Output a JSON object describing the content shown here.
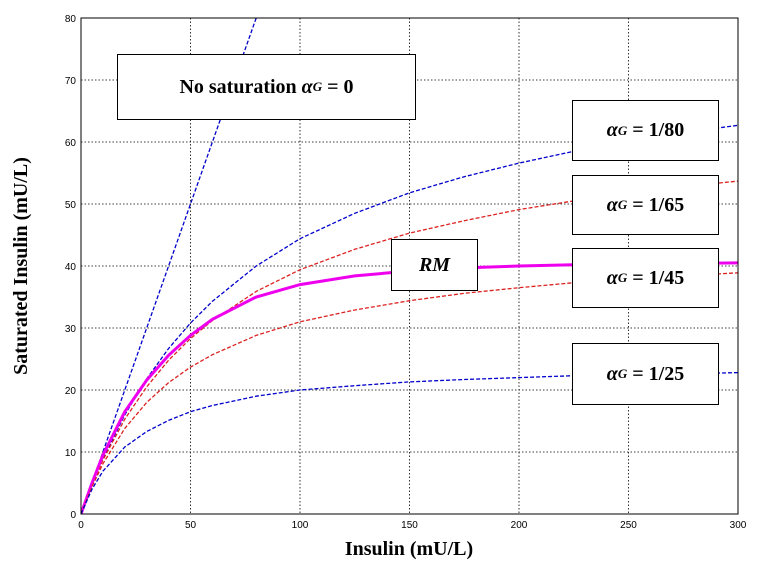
{
  "chart_data": {
    "type": "line",
    "title": "",
    "xlabel": "Insulin (mU/L)",
    "ylabel": "Saturated Insulin  (mU/L)",
    "xlim": [
      0,
      300
    ],
    "ylim": [
      0,
      80
    ],
    "xticks": [
      "0",
      "50",
      "100",
      "150",
      "200",
      "250",
      "300"
    ],
    "yticks": [
      "0",
      "10",
      "20",
      "30",
      "40",
      "50",
      "60",
      "70",
      "80"
    ],
    "grid": true,
    "series": [
      {
        "name": "No saturation αG = 0",
        "color": "#0000cc",
        "style": "dashed",
        "alpha_g": 0,
        "x": [
          0,
          80
        ],
        "y": [
          0,
          80
        ]
      },
      {
        "name": "αG = 1/80",
        "color": "#0000cc",
        "style": "dashed",
        "alpha_g": 0.0125,
        "x": [
          0,
          5,
          10,
          20,
          30,
          40,
          50,
          60,
          80,
          100,
          125,
          150,
          175,
          200,
          225,
          250,
          275,
          300
        ],
        "y": [
          0,
          4.7,
          8.9,
          16.0,
          21.8,
          26.7,
          30.8,
          34.3,
          40.0,
          44.4,
          48.5,
          51.8,
          54.4,
          56.6,
          58.5,
          60.1,
          61.5,
          62.7
        ]
      },
      {
        "name": "αG = 1/65",
        "color": "#dd2222",
        "style": "dashed",
        "alpha_g": 0.01538,
        "x": [
          0,
          5,
          10,
          20,
          30,
          40,
          50,
          60,
          80,
          100,
          125,
          150,
          175,
          200,
          225,
          250,
          275,
          300
        ],
        "y": [
          0,
          4.6,
          8.7,
          15.3,
          20.5,
          24.8,
          28.3,
          31.2,
          35.9,
          39.4,
          42.7,
          45.3,
          47.3,
          49.1,
          50.5,
          51.7,
          52.8,
          53.7
        ]
      },
      {
        "name": "RM",
        "color": "#ee00ee",
        "style": "solid",
        "width": 3,
        "x": [
          0,
          5,
          10,
          20,
          30,
          40,
          50,
          60,
          80,
          100,
          125,
          150,
          175,
          200,
          225,
          250,
          275,
          300
        ],
        "y": [
          0,
          5.0,
          9.5,
          16.5,
          21.6,
          25.6,
          28.8,
          31.4,
          35.0,
          37.0,
          38.4,
          39.2,
          39.7,
          40.0,
          40.2,
          40.3,
          40.4,
          40.5
        ]
      },
      {
        "name": "αG = 1/45",
        "color": "#dd2222",
        "style": "dashed",
        "alpha_g": 0.02222,
        "x": [
          0,
          5,
          10,
          20,
          30,
          40,
          50,
          60,
          80,
          100,
          125,
          150,
          175,
          200,
          225,
          250,
          275,
          300
        ],
        "y": [
          0,
          4.4,
          8.1,
          13.8,
          18.0,
          21.2,
          23.7,
          25.7,
          28.8,
          31.0,
          32.9,
          34.4,
          35.6,
          36.5,
          37.3,
          37.9,
          38.4,
          38.9
        ]
      },
      {
        "name": "αG = 1/25",
        "color": "#0000cc",
        "style": "dashed",
        "alpha_g": 0.04,
        "x": [
          0,
          5,
          10,
          20,
          30,
          40,
          50,
          60,
          80,
          100,
          125,
          150,
          175,
          200,
          225,
          250,
          275,
          300
        ],
        "y": [
          0,
          4.0,
          6.9,
          10.8,
          13.3,
          15.1,
          16.5,
          17.5,
          19.0,
          20.0,
          20.7,
          21.3,
          21.7,
          22.0,
          22.3,
          22.5,
          22.6,
          22.8
        ]
      }
    ],
    "annotations": {
      "no_sat": {
        "text": "No saturation ",
        "alpha": "α",
        "sub": "G",
        "rest": " = 0"
      },
      "a80": {
        "alpha": "α",
        "sub": "G",
        "rest": " = 1/80"
      },
      "a65": {
        "alpha": "α",
        "sub": "G",
        "rest": " = 1/65"
      },
      "rm": {
        "text": "RM"
      },
      "a45": {
        "alpha": "α",
        "sub": "G",
        "rest": " = 1/45"
      },
      "a25": {
        "alpha": "α",
        "sub": "G",
        "rest": " = 1/25"
      }
    }
  }
}
